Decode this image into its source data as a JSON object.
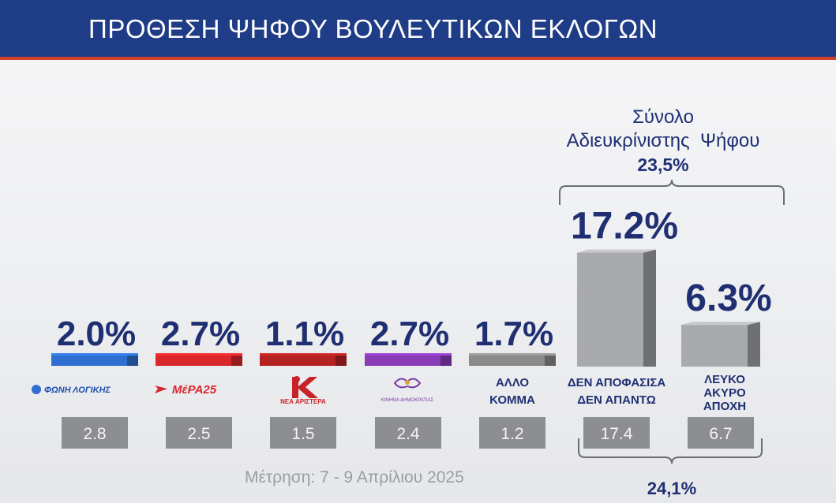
{
  "header": {
    "title": "ΠΡΟΘΕΣΗ ΨΗΦΟΥ ΒΟΥΛΕΥΤΙΚΩΝ ΕΚΛΟΓΩΝ"
  },
  "footer": {
    "date": "Μέτρηση: 7 - 9 Απρίλιου 2025"
  },
  "chart_data": {
    "type": "bar",
    "title": "ΠΡΟΘΕΣΗ ΨΗΦΟΥ ΒΟΥΛΕΥΤΙΚΩΝ ΕΚΛΟΓΩΝ",
    "categories": [
      "ΦΩΝΗ ΛΟΓΙΚΗΣ",
      "ΜέΡΑ25",
      "ΝΕΑ ΑΡΙΣΤΕΡΑ",
      "ΚΙΝΗΜΑ ΔΗΜΟΚΡΑΤΙΑΣ",
      "ΑΛΛΟ ΚΟΜΜΑ",
      "ΔΕΝ ΑΠΟΦΑΣΙΣΑ ΔΕΝ ΑΠΑΝΤΩ",
      "ΛΕΥΚΟ ΑΚΥΡΟ ΑΠΟΧΗ"
    ],
    "values": [
      2.0,
      2.7,
      1.1,
      2.7,
      1.7,
      17.2,
      6.3
    ],
    "value_labels": [
      "2.0%",
      "2.7%",
      "1.1%",
      "2.7%",
      "1.7%",
      "17.2%",
      "6.3%"
    ],
    "previous_values": [
      2.8,
      2.5,
      1.5,
      2.4,
      1.2,
      17.4,
      6.7
    ],
    "previous_labels": [
      "2.8",
      "2.5",
      "1.5",
      "2.4",
      "1.2",
      "17.4",
      "6.7"
    ],
    "colors": [
      "#2f6fd1",
      "#d8282c",
      "#b52222",
      "#8a3bb8",
      "#8a8a8a",
      "#8a8a8a",
      "#7a7a7a"
    ],
    "text_labels": [
      {
        "lines": []
      },
      {
        "lines": []
      },
      {
        "lines": []
      },
      {
        "lines": []
      },
      {
        "lines": [
          "ΑΛΛΟ",
          "ΚΟΜΜΑ"
        ]
      },
      {
        "lines": [
          "ΔΕΝ ΑΠΟΦΑΣΙΣΑ",
          "ΔΕΝ ΑΠΑΝΤΩ"
        ]
      },
      {
        "lines": [
          "ΛΕΥΚΟ",
          "ΑΚΥΡΟ",
          "ΑΠΟΧΗ"
        ]
      }
    ],
    "logo_texts": [
      "ΦΩΝΗ ΛΟΓΙΚΗΣ",
      "ΜέΡΑ25",
      "ΝΕΑ ΑΡΙΣΤΕΡΑ",
      "ΚΙΝΗΜΑ ΔΗΜΟΚΡΑΤΙΑΣ"
    ],
    "annotations": {
      "total_title_line1": "Σύνολο",
      "total_title_line2": "Αδιευκρίνιστης  Ψήφου",
      "total_current": "23,5%",
      "total_previous": "24,1%"
    },
    "ylim": [
      0,
      20
    ]
  }
}
